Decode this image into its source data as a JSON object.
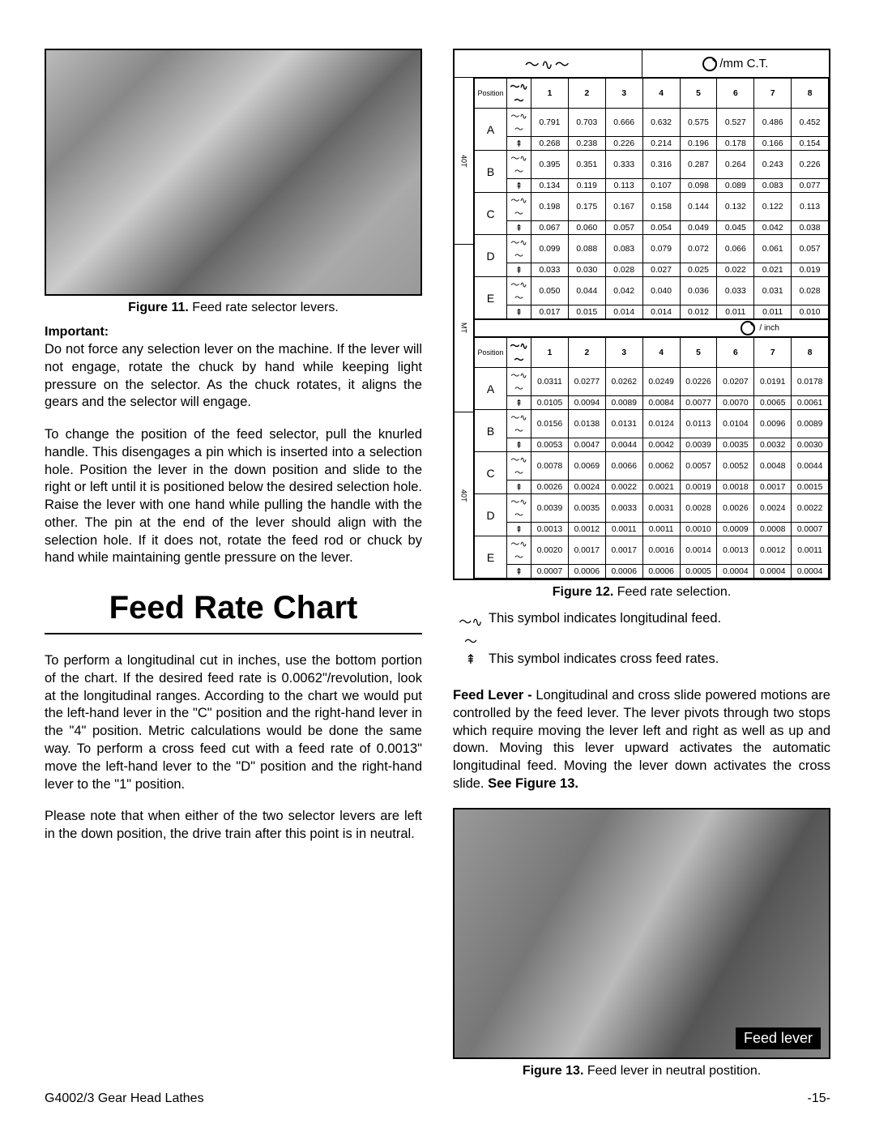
{
  "fig11_caption_bold": "Figure 11.",
  "fig11_caption": " Feed rate selector levers.",
  "important_label": "Important:",
  "p1": "Do not force any selection lever on the machine. If the lever will not engage, rotate the chuck by hand while keeping light pressure on the selector. As the chuck rotates, it aligns the gears and the selector will engage.",
  "p2": "To change the position of the feed selector, pull the knurled handle. This disengages a pin which is inserted into a selection hole. Position the lever in the down position and slide to the right or left until it is positioned below the desired selection hole. Raise the lever with one hand while pulling the handle with the other. The pin at the end of the lever should align with the selection hole. If it does not, rotate the feed rod or chuck by hand while maintaining gentle pressure on the lever.",
  "section_title": "Feed Rate Chart",
  "p3": "To perform a longitudinal cut in inches, use the bottom portion of the chart. If the desired feed rate is 0.0062\"/revolution, look at the longitudinal ranges. According to the chart we would put the left-hand lever in the \"C\" position and the right-hand lever in the \"4\" position. Metric calculations would be done the same way. To perform a cross feed cut with a feed rate of 0.0013\" move the left-hand lever to the \"D\" position and the right-hand lever to the \"1\" position.",
  "p4": "Please note that when either of the two selector levers are left in the down position, the drive train after this point is in neutral.",
  "mm_unit": "mm C.T.",
  "inch_unit": "inch",
  "long_sym": "～∿～",
  "cross_sym": "⇞",
  "col_headers": [
    "1",
    "2",
    "3",
    "4",
    "5",
    "6",
    "7",
    "8"
  ],
  "position_label": "Position",
  "side_40t": "40T",
  "side_mt": "MT",
  "mm_rows": [
    {
      "pos": "A",
      "long": [
        "0.791",
        "0.703",
        "0.666",
        "0.632",
        "0.575",
        "0.527",
        "0.486",
        "0.452"
      ],
      "cross": [
        "0.268",
        "0.238",
        "0.226",
        "0.214",
        "0.196",
        "0.178",
        "0.166",
        "0.154"
      ]
    },
    {
      "pos": "B",
      "long": [
        "0.395",
        "0.351",
        "0.333",
        "0.316",
        "0.287",
        "0.264",
        "0.243",
        "0.226"
      ],
      "cross": [
        "0.134",
        "0.119",
        "0.113",
        "0.107",
        "0.098",
        "0.089",
        "0.083",
        "0.077"
      ]
    },
    {
      "pos": "C",
      "long": [
        "0.198",
        "0.175",
        "0.167",
        "0.158",
        "0.144",
        "0.132",
        "0.122",
        "0.113"
      ],
      "cross": [
        "0.067",
        "0.060",
        "0.057",
        "0.054",
        "0.049",
        "0.045",
        "0.042",
        "0.038"
      ]
    },
    {
      "pos": "D",
      "long": [
        "0.099",
        "0.088",
        "0.083",
        "0.079",
        "0.072",
        "0.066",
        "0.061",
        "0.057"
      ],
      "cross": [
        "0.033",
        "0.030",
        "0.028",
        "0.027",
        "0.025",
        "0.022",
        "0.021",
        "0.019"
      ]
    },
    {
      "pos": "E",
      "long": [
        "0.050",
        "0.044",
        "0.042",
        "0.040",
        "0.036",
        "0.033",
        "0.031",
        "0.028"
      ],
      "cross": [
        "0.017",
        "0.015",
        "0.014",
        "0.014",
        "0.012",
        "0.011",
        "0.011",
        "0.010"
      ]
    }
  ],
  "inch_rows": [
    {
      "pos": "A",
      "long": [
        "0.0311",
        "0.0277",
        "0.0262",
        "0.0249",
        "0.0226",
        "0.0207",
        "0.0191",
        "0.0178"
      ],
      "cross": [
        "0.0105",
        "0.0094",
        "0.0089",
        "0.0084",
        "0.0077",
        "0.0070",
        "0.0065",
        "0.0061"
      ]
    },
    {
      "pos": "B",
      "long": [
        "0.0156",
        "0.0138",
        "0.0131",
        "0.0124",
        "0.0113",
        "0.0104",
        "0.0096",
        "0.0089"
      ],
      "cross": [
        "0.0053",
        "0.0047",
        "0.0044",
        "0.0042",
        "0.0039",
        "0.0035",
        "0.0032",
        "0.0030"
      ]
    },
    {
      "pos": "C",
      "long": [
        "0.0078",
        "0.0069",
        "0.0066",
        "0.0062",
        "0.0057",
        "0.0052",
        "0.0048",
        "0.0044"
      ],
      "cross": [
        "0.0026",
        "0.0024",
        "0.0022",
        "0.0021",
        "0.0019",
        "0.0018",
        "0.0017",
        "0.0015"
      ]
    },
    {
      "pos": "D",
      "long": [
        "0.0039",
        "0.0035",
        "0.0033",
        "0.0031",
        "0.0028",
        "0.0026",
        "0.0024",
        "0.0022"
      ],
      "cross": [
        "0.0013",
        "0.0012",
        "0.0011",
        "0.0011",
        "0.0010",
        "0.0009",
        "0.0008",
        "0.0007"
      ]
    },
    {
      "pos": "E",
      "long": [
        "0.0020",
        "0.0017",
        "0.0017",
        "0.0016",
        "0.0014",
        "0.0013",
        "0.0012",
        "0.0011"
      ],
      "cross": [
        "0.0007",
        "0.0006",
        "0.0006",
        "0.0006",
        "0.0005",
        "0.0004",
        "0.0004",
        "0.0004"
      ]
    }
  ],
  "fig12_caption_bold": "Figure 12.",
  "fig12_caption": " Feed rate selection.",
  "legend1": "This symbol indicates longitudinal feed.",
  "legend2": "This symbol indicates cross feed rates.",
  "p5_bold": "Feed Lever - ",
  "p5": "Longitudinal and cross slide powered motions are controlled by the feed lever. The lever pivots through two stops which require moving the lever left and right as well as up and down. Moving this lever upward activates the automatic longitudinal feed. Moving the lever down activates the cross slide. ",
  "p5_bold_end": "See Figure 13.",
  "feed_lever_label": "Feed lever",
  "fig13_caption_bold": "Figure 13.",
  "fig13_caption": " Feed lever in neutral postition.",
  "footer_left": "G4002/3 Gear Head Lathes",
  "footer_right": "-15-"
}
